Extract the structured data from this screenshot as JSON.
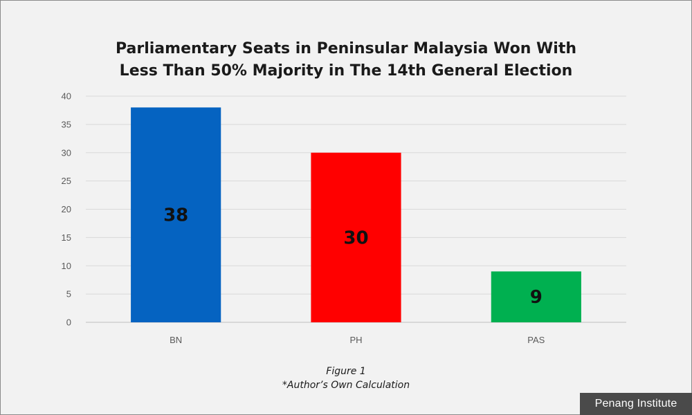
{
  "chart_data": {
    "type": "bar",
    "title_lines": [
      "Parliamentary Seats in Peninsular Malaysia Won With",
      "Less Than 50% Majority in The 14th General Election"
    ],
    "categories": [
      "BN",
      "PH",
      "PAS"
    ],
    "values": [
      38,
      30,
      9
    ],
    "data_labels": [
      "38",
      "30",
      "9"
    ],
    "colors": [
      "#0563c1",
      "#ff0000",
      "#00b050"
    ],
    "yticks": [
      "0",
      "5",
      "10",
      "15",
      "20",
      "25",
      "30",
      "35",
      "40"
    ],
    "ylim": [
      0,
      40
    ],
    "grid": true,
    "legend": "none"
  },
  "caption": {
    "figure": "Figure 1",
    "note": "*Author’s Own Calculation"
  },
  "brand": {
    "label": "Penang Institute"
  }
}
